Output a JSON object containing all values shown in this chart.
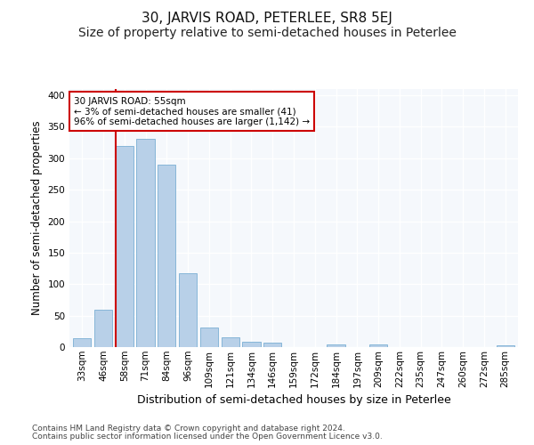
{
  "title": "30, JARVIS ROAD, PETERLEE, SR8 5EJ",
  "subtitle": "Size of property relative to semi-detached houses in Peterlee",
  "xlabel": "Distribution of semi-detached houses by size in Peterlee",
  "ylabel": "Number of semi-detached properties",
  "categories": [
    "33sqm",
    "46sqm",
    "58sqm",
    "71sqm",
    "84sqm",
    "96sqm",
    "109sqm",
    "121sqm",
    "134sqm",
    "146sqm",
    "159sqm",
    "172sqm",
    "184sqm",
    "197sqm",
    "209sqm",
    "222sqm",
    "235sqm",
    "247sqm",
    "260sqm",
    "272sqm",
    "285sqm"
  ],
  "values": [
    14,
    60,
    320,
    331,
    290,
    117,
    31,
    15,
    8,
    7,
    0,
    0,
    4,
    0,
    4,
    0,
    0,
    0,
    0,
    0,
    3
  ],
  "bar_color": "#b8d0e8",
  "bar_edge_color": "#7aafd4",
  "vline_color": "#cc0000",
  "annotation_text": "30 JARVIS ROAD: 55sqm\n← 3% of semi-detached houses are smaller (41)\n96% of semi-detached houses are larger (1,142) →",
  "annotation_box_color": "#ffffff",
  "annotation_box_edge": "#cc0000",
  "ylim": [
    0,
    410
  ],
  "yticks": [
    0,
    50,
    100,
    150,
    200,
    250,
    300,
    350,
    400
  ],
  "footer1": "Contains HM Land Registry data © Crown copyright and database right 2024.",
  "footer2": "Contains public sector information licensed under the Open Government Licence v3.0.",
  "bg_color": "#ffffff",
  "plot_bg_color": "#f5f8fc",
  "grid_color": "#ffffff",
  "title_fontsize": 11,
  "subtitle_fontsize": 10,
  "axis_label_fontsize": 8.5,
  "tick_fontsize": 7.5,
  "footer_fontsize": 6.5
}
